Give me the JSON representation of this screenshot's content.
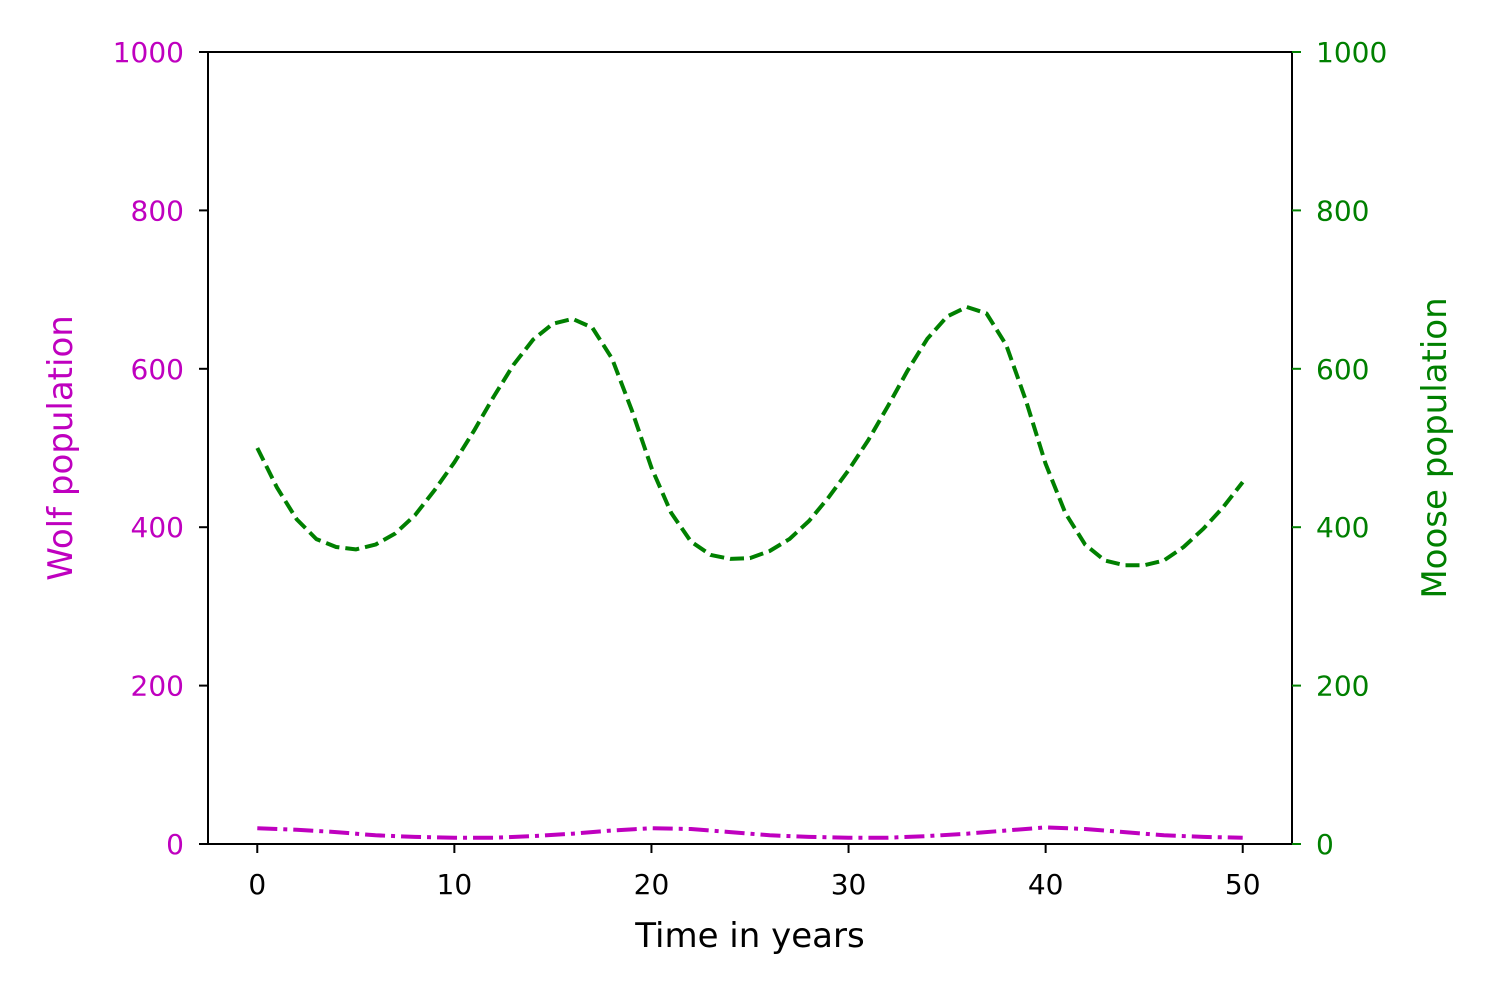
{
  "chart_data": {
    "type": "line",
    "title": "",
    "xlabel": "Time in years",
    "xlim": [
      -2.5,
      52.5
    ],
    "x_ticks": [
      0,
      10,
      20,
      30,
      40,
      50
    ],
    "grid": false,
    "legend": "none",
    "left_axis": {
      "label": "Wolf population",
      "color": "#bf00bf",
      "ylim": [
        0,
        1000
      ],
      "ticks": [
        0,
        200,
        400,
        600,
        800,
        1000
      ]
    },
    "right_axis": {
      "label": "Moose population",
      "color": "#008000",
      "ylim": [
        0,
        1000
      ],
      "ticks": [
        0,
        200,
        400,
        600,
        800,
        1000
      ]
    },
    "series": [
      {
        "axis": "left",
        "color": "#bf00bf",
        "line_style": "dashdot",
        "x": [
          0,
          2,
          4,
          6,
          8,
          10,
          12,
          14,
          16,
          18,
          20,
          22,
          24,
          26,
          28,
          30,
          32,
          34,
          36,
          38,
          40,
          42,
          44,
          46,
          48,
          50
        ],
        "y": [
          20,
          18,
          15,
          11,
          9,
          8,
          8,
          10,
          13,
          17,
          20,
          19,
          15,
          11,
          9,
          8,
          8,
          10,
          13,
          17,
          21,
          19,
          15,
          11,
          9,
          8
        ]
      },
      {
        "axis": "right",
        "color": "#008000",
        "line_style": "dashed",
        "x": [
          0,
          1,
          2,
          3,
          4,
          5,
          6,
          7,
          8,
          9,
          10,
          11,
          12,
          13,
          14,
          15,
          16,
          17,
          18,
          19,
          20,
          21,
          22,
          23,
          24,
          25,
          26,
          27,
          28,
          29,
          30,
          31,
          32,
          33,
          34,
          35,
          36,
          37,
          38,
          39,
          40,
          41,
          42,
          43,
          44,
          45,
          46,
          47,
          48,
          49,
          50
        ],
        "y": [
          500,
          450,
          410,
          385,
          375,
          372,
          378,
          392,
          415,
          447,
          482,
          522,
          565,
          605,
          637,
          657,
          663,
          652,
          613,
          548,
          475,
          418,
          382,
          365,
          360,
          361,
          370,
          385,
          408,
          438,
          472,
          510,
          553,
          598,
          638,
          666,
          678,
          670,
          630,
          560,
          480,
          418,
          378,
          358,
          352,
          352,
          358,
          375,
          398,
          425,
          457
        ]
      }
    ]
  }
}
